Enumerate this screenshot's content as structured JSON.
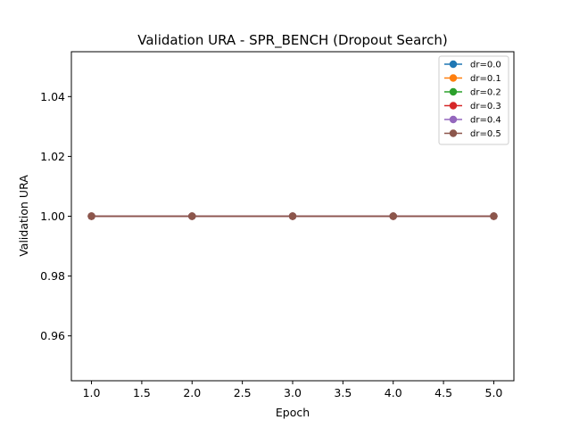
{
  "chart_data": {
    "type": "line",
    "title": "Validation URA - SPR_BENCH (Dropout Search)",
    "xlabel": "Epoch",
    "ylabel": "Validation URA",
    "xlim": [
      0.8,
      5.2
    ],
    "ylim": [
      0.945,
      1.055
    ],
    "xticks": [
      1.0,
      1.5,
      2.0,
      2.5,
      3.0,
      3.5,
      4.0,
      4.5,
      5.0
    ],
    "xtick_labels": [
      "1.0",
      "1.5",
      "2.0",
      "2.5",
      "3.0",
      "3.5",
      "4.0",
      "4.5",
      "5.0"
    ],
    "yticks": [
      0.96,
      0.98,
      1.0,
      1.02,
      1.04
    ],
    "ytick_labels": [
      "0.96",
      "0.98",
      "1.00",
      "1.02",
      "1.04"
    ],
    "grid": false,
    "legend_position": "top-right",
    "x": [
      1,
      2,
      3,
      4,
      5
    ],
    "series": [
      {
        "name": "dr=0.0",
        "color": "#1f77b4",
        "values": [
          1.0,
          1.0,
          1.0,
          1.0,
          1.0
        ]
      },
      {
        "name": "dr=0.1",
        "color": "#ff7f0e",
        "values": [
          1.0,
          1.0,
          1.0,
          1.0,
          1.0
        ]
      },
      {
        "name": "dr=0.2",
        "color": "#2ca02c",
        "values": [
          1.0,
          1.0,
          1.0,
          1.0,
          1.0
        ]
      },
      {
        "name": "dr=0.3",
        "color": "#d62728",
        "values": [
          1.0,
          1.0,
          1.0,
          1.0,
          1.0
        ]
      },
      {
        "name": "dr=0.4",
        "color": "#9467bd",
        "values": [
          1.0,
          1.0,
          1.0,
          1.0,
          1.0
        ]
      },
      {
        "name": "dr=0.5",
        "color": "#8c564b",
        "values": [
          1.0,
          1.0,
          1.0,
          1.0,
          1.0
        ]
      }
    ]
  }
}
